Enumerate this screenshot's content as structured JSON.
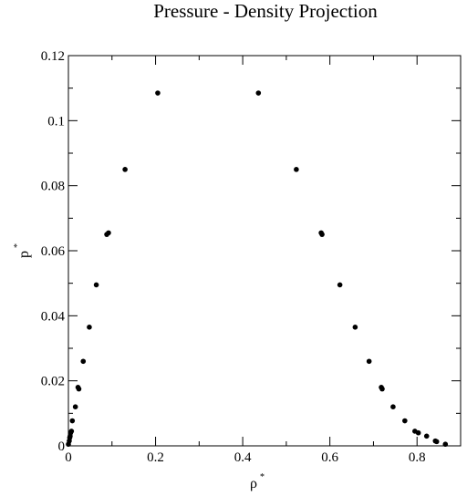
{
  "chart_data": {
    "type": "scatter",
    "title": "Pressure - Density Projection",
    "xlabel": "ρ",
    "xlabel_sup": "*",
    "ylabel": "p",
    "ylabel_sup": "*",
    "xlim": [
      0,
      0.9
    ],
    "ylim": [
      0,
      0.12
    ],
    "xticks": [
      0,
      0.2,
      0.4,
      0.6,
      0.8
    ],
    "xtick_labels": [
      "0",
      "0.2",
      "0.4",
      "0.6",
      "0.8"
    ],
    "yticks": [
      0,
      0.02,
      0.04,
      0.06,
      0.08,
      0.1,
      0.12
    ],
    "ytick_labels": [
      "0",
      "0.02",
      "0.04",
      "0.06",
      "0.08",
      "0.1",
      "0.12"
    ],
    "grid": false,
    "marker_color": "#000000",
    "series": [
      {
        "points": [
          {
            "x": 0.0,
            "y": 0.0005
          },
          {
            "x": 0.002,
            "y": 0.0015
          },
          {
            "x": 0.003,
            "y": 0.0025
          },
          {
            "x": 0.004,
            "y": 0.003
          },
          {
            "x": 0.005,
            "y": 0.004
          },
          {
            "x": 0.007,
            "y": 0.0045
          },
          {
            "x": 0.009,
            "y": 0.0077
          },
          {
            "x": 0.016,
            "y": 0.012
          },
          {
            "x": 0.022,
            "y": 0.018
          },
          {
            "x": 0.024,
            "y": 0.0175
          },
          {
            "x": 0.034,
            "y": 0.026
          },
          {
            "x": 0.048,
            "y": 0.0365
          },
          {
            "x": 0.064,
            "y": 0.0495
          },
          {
            "x": 0.088,
            "y": 0.065
          },
          {
            "x": 0.092,
            "y": 0.0655
          },
          {
            "x": 0.13,
            "y": 0.085
          },
          {
            "x": 0.205,
            "y": 0.1085
          },
          {
            "x": 0.436,
            "y": 0.1085
          },
          {
            "x": 0.523,
            "y": 0.085
          },
          {
            "x": 0.58,
            "y": 0.0655
          },
          {
            "x": 0.582,
            "y": 0.065
          },
          {
            "x": 0.623,
            "y": 0.0495
          },
          {
            "x": 0.658,
            "y": 0.0365
          },
          {
            "x": 0.69,
            "y": 0.026
          },
          {
            "x": 0.718,
            "y": 0.018
          },
          {
            "x": 0.72,
            "y": 0.0175
          },
          {
            "x": 0.745,
            "y": 0.012
          },
          {
            "x": 0.772,
            "y": 0.0077
          },
          {
            "x": 0.795,
            "y": 0.0045
          },
          {
            "x": 0.803,
            "y": 0.004
          },
          {
            "x": 0.822,
            "y": 0.003
          },
          {
            "x": 0.842,
            "y": 0.0015
          },
          {
            "x": 0.845,
            "y": 0.0013
          },
          {
            "x": 0.865,
            "y": 0.0005
          }
        ]
      }
    ]
  }
}
